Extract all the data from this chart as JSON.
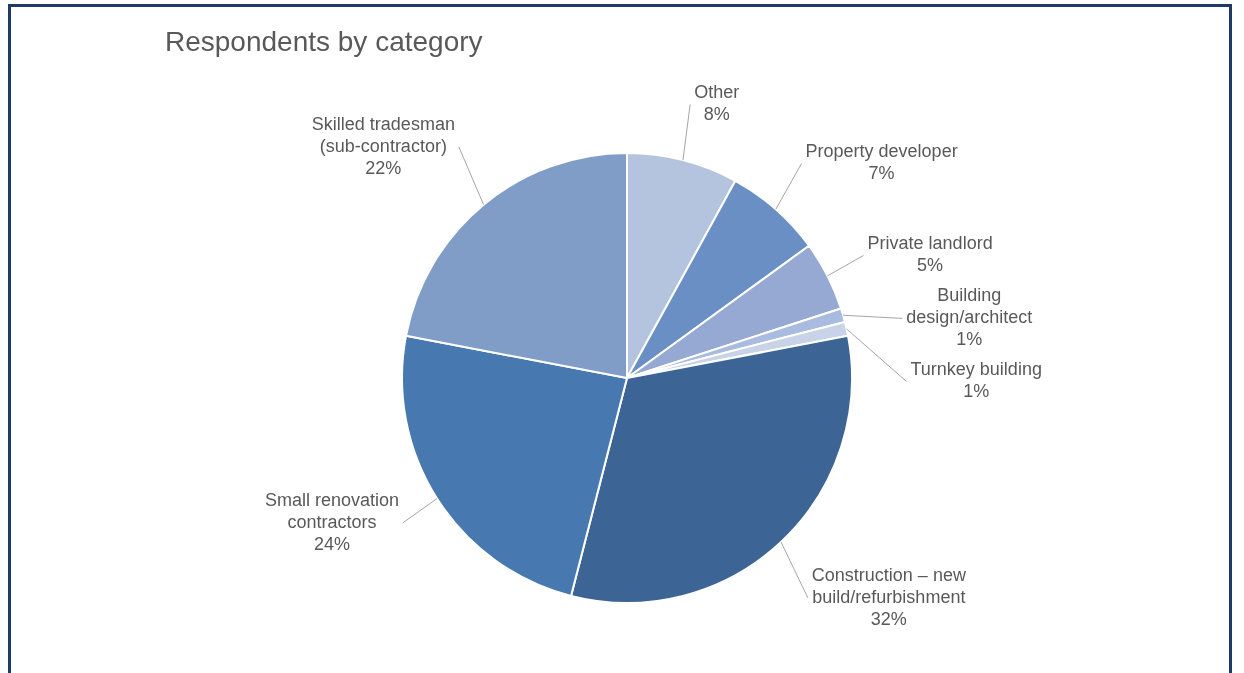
{
  "chart_data": {
    "type": "pie",
    "title": "Respondents by category",
    "categories": [
      "Other",
      "Property developer",
      "Private landlord",
      "Building design/architect",
      "Turnkey building",
      "Construction – new build/refurbishment",
      "Small renovation contractors",
      "Skilled tradesman (sub-contractor)"
    ],
    "values": [
      8,
      7,
      5,
      1,
      1,
      32,
      24,
      22
    ],
    "value_labels": [
      "8%",
      "7%",
      "5%",
      "1%",
      "1%",
      "32%",
      "24%",
      "22%"
    ],
    "colors": [
      "#b4c3de",
      "#6a8fc4",
      "#95a9d3",
      "#a9bbdf",
      "#c9d3e8",
      "#3c6494",
      "#4878b0",
      "#809dc8"
    ],
    "legend": false
  }
}
